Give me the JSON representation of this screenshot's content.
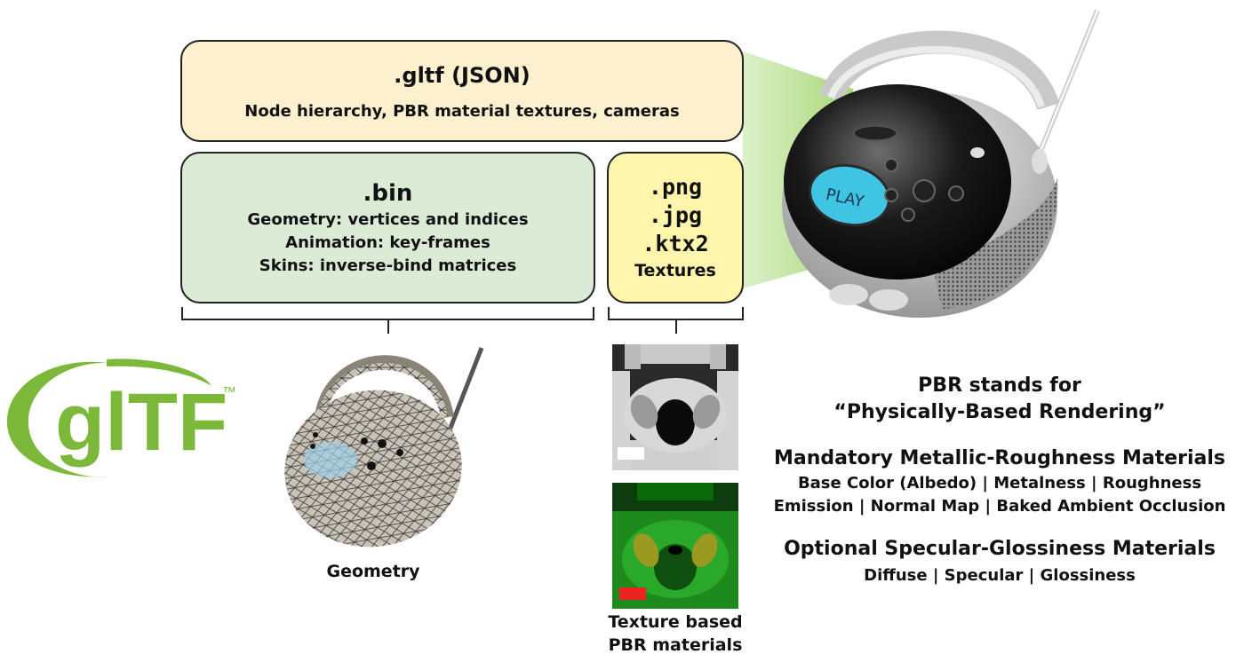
{
  "gltf_box": {
    "title": ".gltf (JSON)",
    "subtitle": "Node hierarchy, PBR material textures, cameras"
  },
  "bin_box": {
    "title": ".bin",
    "lines": [
      "Geometry: vertices and indices",
      "Animation: key-frames",
      "Skins: inverse-bind matrices"
    ]
  },
  "texture_box": {
    "formats": [
      ".png",
      ".jpg",
      ".ktx2"
    ],
    "label": "Textures"
  },
  "logo": {
    "text": "glTF",
    "tm": "™",
    "color": "#7cb83a"
  },
  "player": {
    "button_label": "PLAY",
    "button_color": "#3fc4e4"
  },
  "captions": {
    "geometry": "Geometry",
    "texture_line1": "Texture based",
    "texture_line2": "PBR materials"
  },
  "pbr": {
    "heading_line1": "PBR stands for",
    "heading_line2": "“Physically-Based Rendering”",
    "mandatory_title": "Mandatory Metallic-Roughness Materials",
    "mandatory_line1": "Base Color (Albedo) | Metalness | Roughness",
    "mandatory_line2": "Emission | Normal Map | Baked Ambient Occlusion",
    "optional_title": "Optional Specular-Glossiness Materials",
    "optional_line1": "Diffuse | Specular | Glossiness"
  },
  "colors": {
    "gltf_fill": "#fdf0cf",
    "bin_fill": "#dcebd6",
    "texture_fill": "#fff5ad",
    "beam": "#b8df8e"
  }
}
